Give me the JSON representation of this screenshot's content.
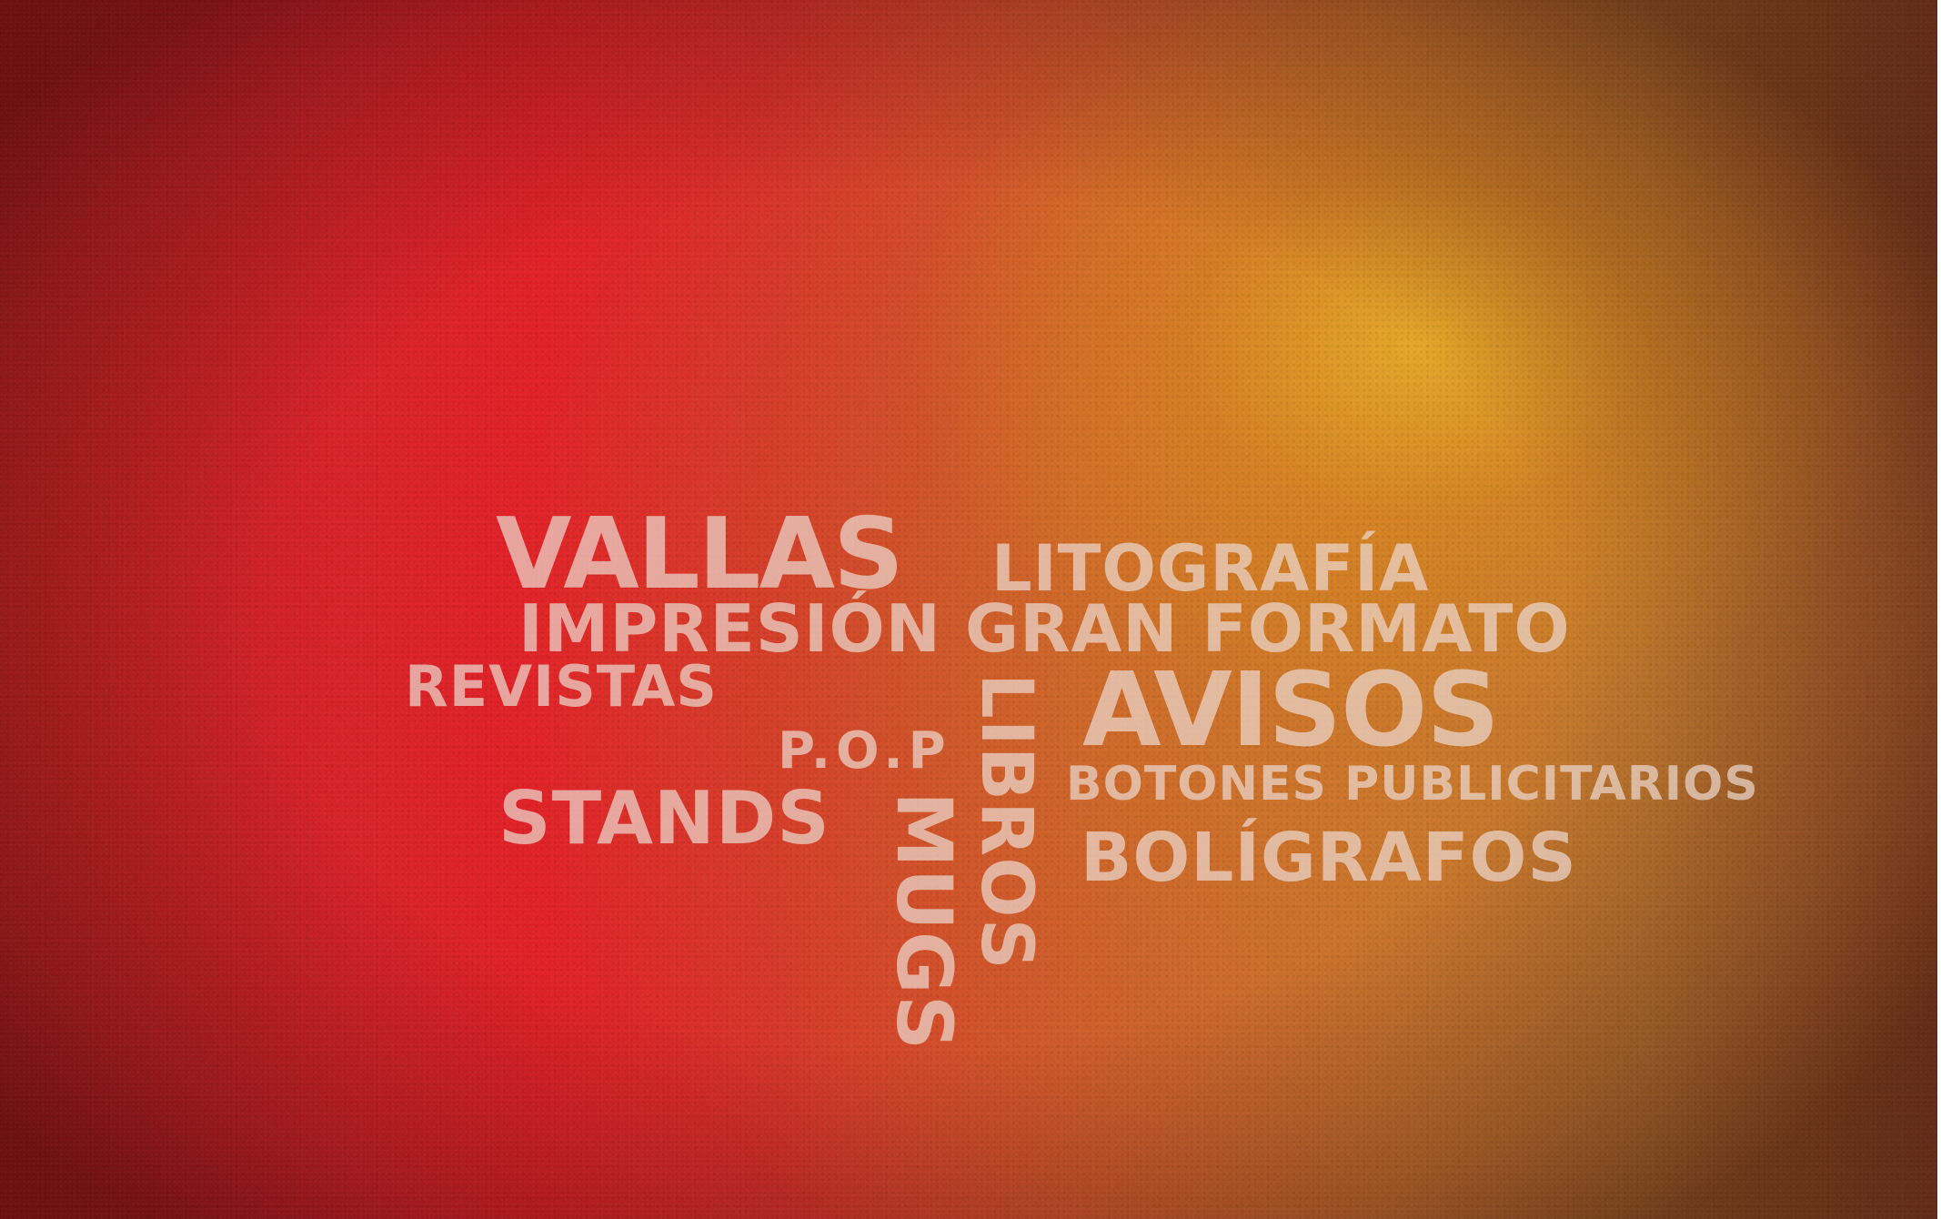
{
  "background": {
    "colors": {
      "red": "#e12228",
      "orange": "#d2552c",
      "gold": "#e6aa28",
      "text": "#ebd7cd"
    }
  },
  "words": {
    "vallas": "VALLAS",
    "litografia": "LITOGRAFÍA",
    "impresion": "IMPRESIÓN GRAN FORMATO",
    "revistas": "REVISTAS",
    "avisos": "AVISOS",
    "pop": "P.O.P",
    "libros": "LIBROS",
    "botones": "BOTONES PUBLICITARIOS",
    "stands": "STANDS",
    "mugs": "MUGS",
    "boligrafos": "BOLÍGRAFOS"
  }
}
